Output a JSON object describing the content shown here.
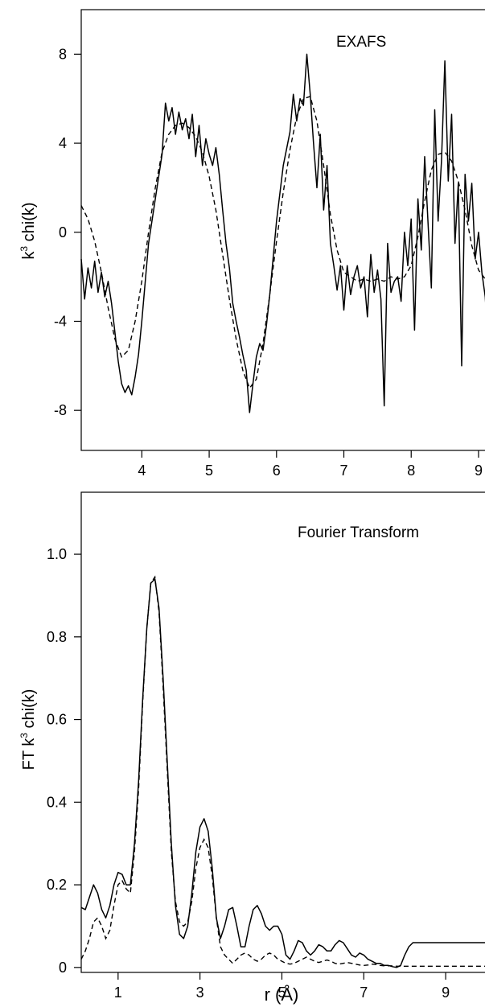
{
  "chart_data": [
    {
      "type": "line",
      "annotation": "EXAFS",
      "ylabel_main": "k",
      "ylabel_sup": "3",
      "ylabel_rest": " chi(k)",
      "xlim": [
        3.1,
        9.12
      ],
      "ylim": [
        -9.8,
        10.0
      ],
      "xticks": [
        4,
        5,
        6,
        7,
        8,
        9
      ],
      "xtick_labels": [
        "4",
        "5",
        "6",
        "7",
        "8",
        "9"
      ],
      "yticks": [
        -8,
        -4,
        0,
        4,
        8
      ],
      "ytick_labels": [
        "-8",
        "-4",
        "0",
        "4",
        "8"
      ],
      "grid": false,
      "series": [
        {
          "style": "solid",
          "x": [
            3.1,
            3.15,
            3.2,
            3.25,
            3.3,
            3.35,
            3.4,
            3.45,
            3.5,
            3.55,
            3.6,
            3.65,
            3.7,
            3.75,
            3.8,
            3.85,
            3.9,
            3.95,
            4.0,
            4.1,
            4.2,
            4.3,
            4.35,
            4.4,
            4.45,
            4.5,
            4.55,
            4.6,
            4.65,
            4.7,
            4.75,
            4.8,
            4.85,
            4.9,
            4.95,
            5.0,
            5.05,
            5.1,
            5.15,
            5.2,
            5.25,
            5.3,
            5.35,
            5.4,
            5.45,
            5.5,
            5.55,
            5.6,
            5.65,
            5.7,
            5.75,
            5.8,
            5.85,
            5.9,
            6.0,
            6.1,
            6.2,
            6.25,
            6.3,
            6.35,
            6.4,
            6.45,
            6.5,
            6.55,
            6.6,
            6.65,
            6.7,
            6.75,
            6.8,
            6.85,
            6.9,
            6.95,
            7.0,
            7.05,
            7.1,
            7.15,
            7.2,
            7.25,
            7.3,
            7.35,
            7.4,
            7.45,
            7.5,
            7.55,
            7.6,
            7.65,
            7.7,
            7.75,
            7.8,
            7.85,
            7.9,
            7.95,
            8.0,
            8.05,
            8.1,
            8.15,
            8.2,
            8.25,
            8.3,
            8.35,
            8.4,
            8.45,
            8.5,
            8.55,
            8.6,
            8.65,
            8.7,
            8.75,
            8.8,
            8.85,
            8.9,
            8.95,
            9.0,
            9.05,
            9.1,
            9.12
          ],
          "y": [
            -1.2,
            -3.0,
            -1.6,
            -2.5,
            -1.3,
            -2.7,
            -1.8,
            -2.9,
            -2.2,
            -3.2,
            -4.5,
            -5.8,
            -6.8,
            -7.2,
            -6.9,
            -7.3,
            -6.5,
            -5.5,
            -4.0,
            -0.5,
            1.5,
            3.5,
            5.8,
            5.0,
            5.6,
            4.4,
            5.4,
            4.6,
            5.1,
            4.2,
            5.3,
            3.4,
            4.8,
            3.0,
            4.2,
            3.5,
            3.0,
            3.8,
            2.6,
            1.0,
            -0.5,
            -1.6,
            -3.2,
            -4.0,
            -4.7,
            -5.5,
            -6.2,
            -8.1,
            -6.8,
            -5.6,
            -5.0,
            -5.3,
            -4.2,
            -2.8,
            0.5,
            3.0,
            4.5,
            6.2,
            5.0,
            6.0,
            5.7,
            8.0,
            6.2,
            4.0,
            2.0,
            4.4,
            1.0,
            3.0,
            -0.5,
            -1.5,
            -2.6,
            -1.5,
            -3.5,
            -1.5,
            -2.8,
            -2.0,
            -1.5,
            -2.5,
            -2.0,
            -3.8,
            -1.0,
            -2.7,
            -1.7,
            -3.0,
            -7.8,
            -0.5,
            -2.7,
            -2.2,
            -2.0,
            -3.1,
            0.0,
            -1.5,
            0.6,
            -4.4,
            1.5,
            -0.8,
            3.4,
            0.4,
            -2.5,
            5.5,
            0.5,
            3.2,
            7.7,
            2.3,
            5.3,
            -0.5,
            2.2,
            -6.0,
            2.6,
            0.5,
            2.2,
            -1.2,
            0.0,
            -1.8,
            -2.9,
            -3.9
          ]
        },
        {
          "style": "dashed",
          "x": [
            3.1,
            3.2,
            3.3,
            3.4,
            3.5,
            3.6,
            3.7,
            3.8,
            3.9,
            4.0,
            4.1,
            4.2,
            4.3,
            4.4,
            4.5,
            4.6,
            4.7,
            4.8,
            4.9,
            5.0,
            5.1,
            5.2,
            5.3,
            5.4,
            5.5,
            5.6,
            5.7,
            5.8,
            5.9,
            6.0,
            6.1,
            6.2,
            6.3,
            6.4,
            6.5,
            6.6,
            6.7,
            6.8,
            6.9,
            7.0,
            7.1,
            7.2,
            7.3,
            7.4,
            7.5,
            7.6,
            7.7,
            7.8,
            7.9,
            8.0,
            8.1,
            8.2,
            8.3,
            8.4,
            8.5,
            8.6,
            8.7,
            8.8,
            8.9,
            9.0,
            9.1,
            9.12
          ],
          "y": [
            1.2,
            0.6,
            -0.4,
            -1.8,
            -3.4,
            -4.8,
            -5.6,
            -5.3,
            -4.0,
            -2.2,
            0.0,
            2.0,
            3.6,
            4.4,
            4.8,
            4.9,
            4.7,
            4.3,
            3.6,
            2.5,
            1.0,
            -1.0,
            -3.0,
            -4.8,
            -6.2,
            -7.0,
            -6.6,
            -5.0,
            -2.8,
            -0.4,
            1.8,
            3.7,
            5.2,
            6.0,
            6.1,
            5.0,
            3.0,
            0.8,
            -0.8,
            -1.8,
            -2.0,
            -2.2,
            -2.1,
            -2.2,
            -2.1,
            -2.2,
            -2.0,
            -2.1,
            -2.0,
            -1.5,
            -0.2,
            1.4,
            2.8,
            3.5,
            3.6,
            3.2,
            2.3,
            1.0,
            -0.6,
            -1.7,
            -2.1,
            -2.1
          ]
        }
      ]
    },
    {
      "type": "line",
      "annotation": "Fourier Transform",
      "ylabel_main": "FT k",
      "ylabel_sup": "3",
      "ylabel_rest": " chi(k)",
      "xlabel": "r (Å)",
      "xlim": [
        0.1,
        10.0
      ],
      "ylim": [
        -0.012,
        1.15
      ],
      "xticks": [
        1,
        3,
        5,
        7,
        9
      ],
      "xtick_labels": [
        "1",
        "3",
        "5",
        "7",
        "9"
      ],
      "yticks": [
        0.0,
        0.2,
        0.4,
        0.6,
        0.8,
        1.0
      ],
      "ytick_labels": [
        "0",
        "0.2",
        "0.4",
        "0.6",
        "0.8",
        "1.0"
      ],
      "grid": false,
      "series": [
        {
          "style": "solid",
          "x": [
            0.1,
            0.2,
            0.3,
            0.4,
            0.5,
            0.6,
            0.7,
            0.8,
            0.9,
            1.0,
            1.1,
            1.2,
            1.3,
            1.4,
            1.5,
            1.6,
            1.7,
            1.8,
            1.9,
            2.0,
            2.1,
            2.2,
            2.3,
            2.4,
            2.5,
            2.6,
            2.7,
            2.8,
            2.9,
            3.0,
            3.1,
            3.2,
            3.3,
            3.4,
            3.5,
            3.6,
            3.7,
            3.8,
            3.9,
            4.0,
            4.1,
            4.2,
            4.3,
            4.4,
            4.5,
            4.6,
            4.7,
            4.8,
            4.9,
            5.0,
            5.1,
            5.2,
            5.3,
            5.4,
            5.5,
            5.6,
            5.7,
            5.8,
            5.9,
            6.0,
            6.1,
            6.2,
            6.3,
            6.4,
            6.5,
            6.6,
            6.7,
            6.8,
            6.9,
            7.0,
            7.1,
            7.2,
            7.3,
            7.4,
            7.5,
            7.6,
            7.7,
            7.8,
            7.9,
            8.0,
            8.1,
            8.2,
            8.3,
            8.4,
            8.5,
            8.6,
            8.7,
            8.8,
            8.9,
            9.0,
            9.1,
            9.2,
            9.3,
            9.4,
            9.5,
            9.6,
            9.7,
            9.8,
            9.9,
            10.0
          ],
          "y": [
            0.145,
            0.14,
            0.17,
            0.2,
            0.18,
            0.14,
            0.12,
            0.15,
            0.2,
            0.23,
            0.225,
            0.2,
            0.2,
            0.3,
            0.45,
            0.65,
            0.82,
            0.93,
            0.94,
            0.87,
            0.7,
            0.5,
            0.3,
            0.15,
            0.08,
            0.07,
            0.1,
            0.18,
            0.28,
            0.34,
            0.36,
            0.33,
            0.24,
            0.12,
            0.07,
            0.1,
            0.14,
            0.145,
            0.1,
            0.05,
            0.05,
            0.1,
            0.14,
            0.15,
            0.13,
            0.1,
            0.09,
            0.1,
            0.1,
            0.08,
            0.03,
            0.02,
            0.04,
            0.065,
            0.06,
            0.04,
            0.03,
            0.04,
            0.055,
            0.05,
            0.04,
            0.04,
            0.055,
            0.065,
            0.06,
            0.045,
            0.03,
            0.025,
            0.035,
            0.03,
            0.02,
            0.015,
            0.01,
            0.01,
            0.005,
            0.005,
            0.002,
            0.0,
            0.005,
            0.03,
            0.05,
            0.06,
            0.06,
            0.06,
            0.06,
            0.06,
            0.06,
            0.06,
            0.06,
            0.06,
            0.06,
            0.06,
            0.06,
            0.06,
            0.06,
            0.06,
            0.06,
            0.06,
            0.06,
            0.06
          ]
        },
        {
          "style": "dashed",
          "x": [
            0.1,
            0.2,
            0.3,
            0.4,
            0.5,
            0.6,
            0.7,
            0.8,
            0.9,
            1.0,
            1.1,
            1.2,
            1.3,
            1.4,
            1.5,
            1.6,
            1.7,
            1.8,
            1.9,
            2.0,
            2.1,
            2.2,
            2.3,
            2.4,
            2.5,
            2.6,
            2.7,
            2.8,
            2.9,
            3.0,
            3.1,
            3.2,
            3.3,
            3.4,
            3.5,
            3.6,
            3.7,
            3.8,
            3.9,
            4.0,
            4.1,
            4.2,
            4.3,
            4.4,
            4.5,
            4.6,
            4.7,
            4.8,
            4.9,
            5.0,
            5.1,
            5.2,
            5.3,
            5.4,
            5.5,
            5.6,
            5.7,
            5.8,
            5.9,
            6.0,
            6.1,
            6.2,
            6.3,
            6.4,
            6.5,
            6.6,
            6.7,
            6.8,
            6.9,
            7.0,
            7.1,
            7.2,
            7.3,
            7.4,
            7.5,
            7.6,
            7.7,
            7.8,
            7.9,
            8.0,
            8.1,
            8.2,
            8.3,
            8.4,
            8.5,
            8.6,
            8.7,
            8.8,
            8.9,
            9.0,
            9.1,
            9.2,
            9.3,
            9.4,
            9.5,
            9.6,
            9.7,
            9.8,
            9.9,
            10.0
          ],
          "y": [
            0.02,
            0.04,
            0.07,
            0.11,
            0.12,
            0.1,
            0.07,
            0.09,
            0.15,
            0.2,
            0.21,
            0.19,
            0.18,
            0.28,
            0.43,
            0.64,
            0.82,
            0.93,
            0.945,
            0.86,
            0.68,
            0.48,
            0.28,
            0.16,
            0.11,
            0.1,
            0.11,
            0.16,
            0.24,
            0.29,
            0.31,
            0.29,
            0.22,
            0.12,
            0.05,
            0.03,
            0.02,
            0.01,
            0.02,
            0.03,
            0.035,
            0.03,
            0.02,
            0.015,
            0.02,
            0.03,
            0.035,
            0.03,
            0.02,
            0.015,
            0.01,
            0.008,
            0.01,
            0.015,
            0.02,
            0.025,
            0.02,
            0.015,
            0.012,
            0.015,
            0.018,
            0.015,
            0.01,
            0.008,
            0.01,
            0.012,
            0.01,
            0.008,
            0.006,
            0.005,
            0.006,
            0.008,
            0.007,
            0.005,
            0.004,
            0.004,
            0.004,
            0.003,
            0.003,
            0.003,
            0.003,
            0.003,
            0.003,
            0.003,
            0.003,
            0.003,
            0.003,
            0.003,
            0.003,
            0.003,
            0.003,
            0.003,
            0.003,
            0.003,
            0.003,
            0.003,
            0.003,
            0.003,
            0.003,
            0.003
          ]
        }
      ]
    }
  ]
}
